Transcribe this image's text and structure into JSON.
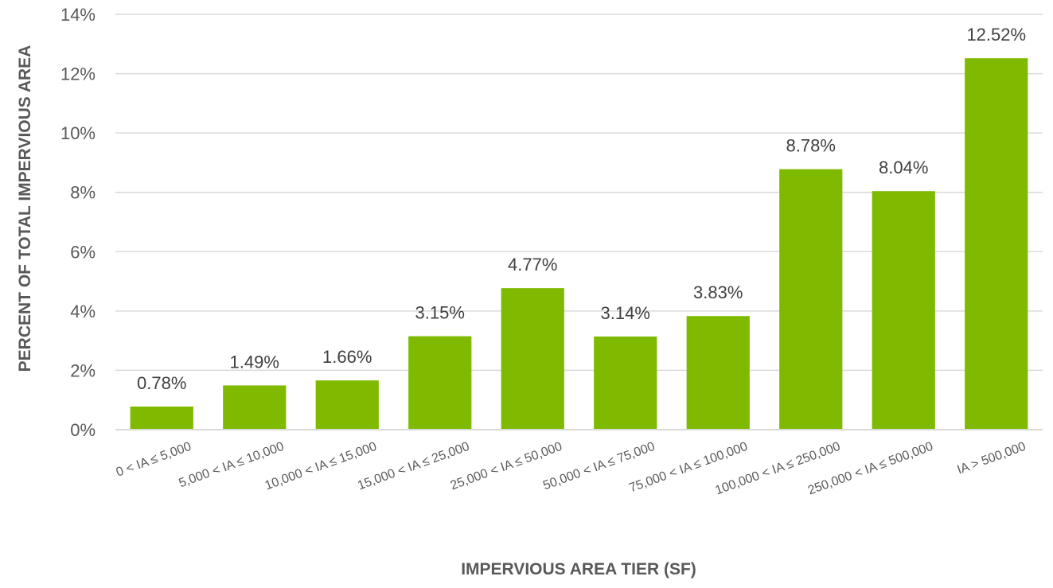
{
  "chart_data": {
    "type": "bar",
    "categories": [
      "0 < IA ≤ 5,000",
      "5,000 < IA ≤ 10,000",
      "10,000 < IA ≤ 15,000",
      "15,000 < IA ≤ 25,000",
      "25,000 < IA ≤ 50,000",
      "50,000 < IA ≤ 75,000",
      "75,000 < IA ≤ 100,000",
      "100,000 < IA ≤ 250,000",
      "250,000 < IA ≤ 500,000",
      "IA > 500,000"
    ],
    "values": [
      0.78,
      1.49,
      1.66,
      3.15,
      4.77,
      3.14,
      3.83,
      8.78,
      8.04,
      12.52
    ],
    "data_labels": [
      "0.78%",
      "1.49%",
      "1.66%",
      "3.15%",
      "4.77%",
      "3.14%",
      "3.83%",
      "8.78%",
      "8.04%",
      "12.52%"
    ],
    "xlabel": "IMPERVIOUS AREA TIER (SF)",
    "ylabel": "PERCENT OF TOTAL IMPERVIOUS AREA",
    "ylim": [
      0,
      14
    ],
    "yticks": [
      0,
      2,
      4,
      6,
      8,
      10,
      12,
      14
    ],
    "ytick_labels": [
      "0%",
      "2%",
      "4%",
      "6%",
      "8%",
      "10%",
      "12%",
      "14%"
    ],
    "grid": true,
    "legend": "none",
    "bar_color": "#7fba00"
  }
}
